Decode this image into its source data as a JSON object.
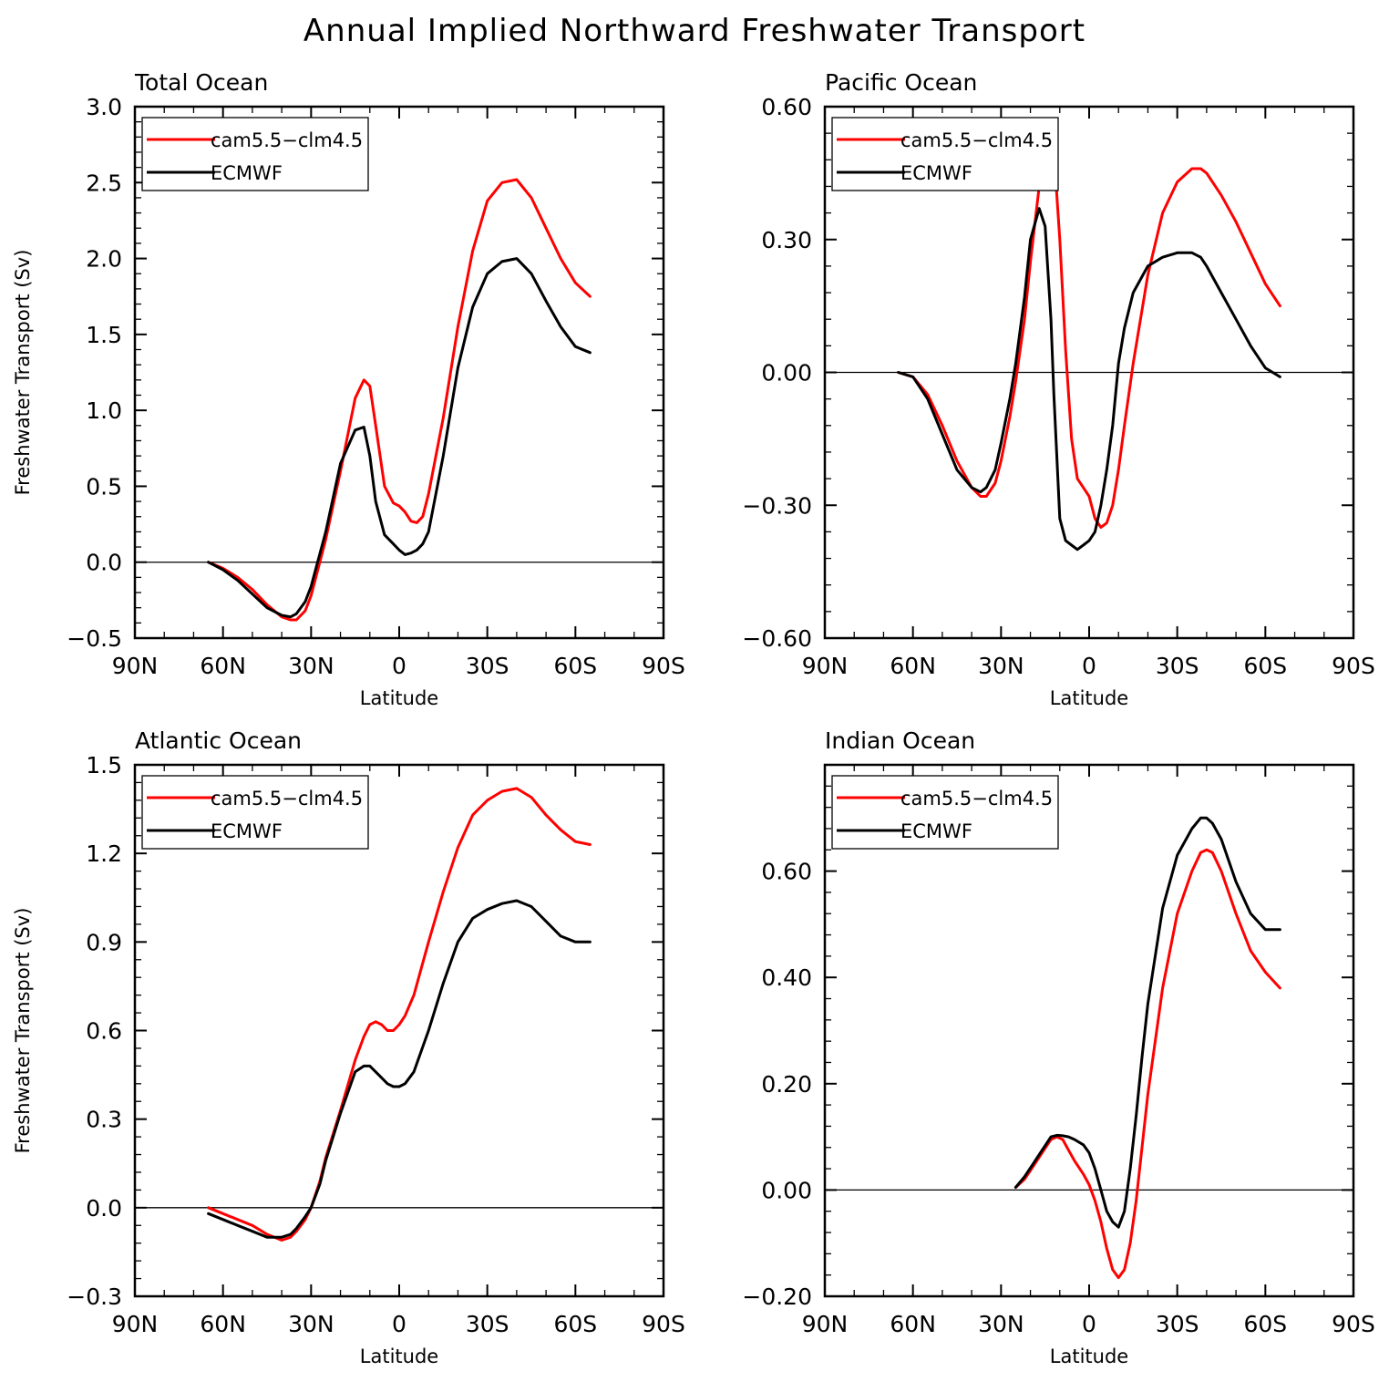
{
  "figure": {
    "title": "Annual Implied Northward Freshwater Transport"
  },
  "chart_data": [
    {
      "type": "line",
      "title": "Total Ocean",
      "xlabel": "Latitude",
      "ylabel": "Freshwater Transport (Sv)",
      "xlim": [
        90,
        -90
      ],
      "ylim": [
        -0.5,
        3.0
      ],
      "x_ticks": [
        90,
        60,
        30,
        0,
        -30,
        -60,
        -90
      ],
      "x_tick_labels": [
        "90N",
        "60N",
        "30N",
        "0",
        "30S",
        "60S",
        "90S"
      ],
      "y_ticks": [
        -0.5,
        0.0,
        0.5,
        1.0,
        1.5,
        2.0,
        2.5,
        3.0
      ],
      "y_tick_labels": [
        "−0.5",
        "0.0",
        "0.5",
        "1.0",
        "1.5",
        "2.0",
        "2.5",
        "3.0"
      ],
      "legend": {
        "placement": "top-left"
      },
      "series": [
        {
          "name": "cam5.5−clm4.5",
          "color": "#ff0000",
          "x": [
            65,
            60,
            55,
            50,
            45,
            40,
            37,
            35,
            32,
            30,
            25,
            20,
            15,
            12,
            10,
            8,
            5,
            2,
            0,
            -2,
            -4,
            -6,
            -8,
            -10,
            -15,
            -20,
            -25,
            -30,
            -35,
            -40,
            -45,
            -50,
            -55,
            -60,
            -65
          ],
          "y": [
            0,
            -0.04,
            -0.1,
            -0.18,
            -0.28,
            -0.36,
            -0.38,
            -0.38,
            -0.32,
            -0.22,
            0.15,
            0.6,
            1.08,
            1.2,
            1.16,
            0.9,
            0.5,
            0.39,
            0.37,
            0.33,
            0.27,
            0.26,
            0.3,
            0.45,
            0.95,
            1.55,
            2.05,
            2.38,
            2.5,
            2.52,
            2.4,
            2.2,
            2.0,
            1.84,
            1.75
          ]
        },
        {
          "name": "ECMWF",
          "color": "#000000",
          "x": [
            65,
            60,
            55,
            50,
            45,
            40,
            37,
            35,
            32,
            30,
            25,
            20,
            15,
            12,
            10,
            8,
            5,
            2,
            0,
            -2,
            -4,
            -6,
            -8,
            -10,
            -15,
            -20,
            -25,
            -30,
            -35,
            -40,
            -45,
            -50,
            -55,
            -60,
            -65
          ],
          "y": [
            0,
            -0.05,
            -0.12,
            -0.21,
            -0.3,
            -0.35,
            -0.36,
            -0.34,
            -0.26,
            -0.16,
            0.2,
            0.65,
            0.87,
            0.89,
            0.7,
            0.4,
            0.18,
            0.12,
            0.08,
            0.05,
            0.06,
            0.08,
            0.12,
            0.2,
            0.7,
            1.28,
            1.68,
            1.9,
            1.98,
            2.0,
            1.9,
            1.72,
            1.55,
            1.42,
            1.38
          ]
        }
      ]
    },
    {
      "type": "line",
      "title": "Pacific Ocean",
      "xlabel": "Latitude",
      "ylabel": "",
      "xlim": [
        90,
        -90
      ],
      "ylim": [
        -0.6,
        0.6
      ],
      "x_ticks": [
        90,
        60,
        30,
        0,
        -30,
        -60,
        -90
      ],
      "x_tick_labels": [
        "90N",
        "60N",
        "30N",
        "0",
        "30S",
        "60S",
        "90S"
      ],
      "y_ticks": [
        -0.6,
        -0.3,
        0.0,
        0.3,
        0.6
      ],
      "y_tick_labels": [
        "−0.60",
        "−0.30",
        "0.00",
        "0.30",
        "0.60"
      ],
      "legend": {
        "placement": "top-left"
      },
      "series": [
        {
          "name": "cam5.5−clm4.5",
          "color": "#ff0000",
          "x": [
            65,
            60,
            55,
            50,
            45,
            40,
            37,
            35,
            32,
            30,
            27,
            25,
            22,
            20,
            17,
            15,
            13,
            12,
            10,
            8,
            6,
            4,
            2,
            0,
            -2,
            -4,
            -6,
            -8,
            -10,
            -12,
            -15,
            -20,
            -25,
            -30,
            -35,
            -38,
            -40,
            -45,
            -50,
            -55,
            -60,
            -65
          ],
          "y": [
            0,
            -0.01,
            -0.05,
            -0.12,
            -0.2,
            -0.26,
            -0.28,
            -0.28,
            -0.25,
            -0.2,
            -0.1,
            -0.02,
            0.12,
            0.25,
            0.42,
            0.52,
            0.53,
            0.5,
            0.3,
            0.05,
            -0.15,
            -0.24,
            -0.26,
            -0.28,
            -0.33,
            -0.35,
            -0.34,
            -0.3,
            -0.22,
            -0.12,
            0.02,
            0.22,
            0.36,
            0.43,
            0.46,
            0.46,
            0.45,
            0.4,
            0.34,
            0.27,
            0.2,
            0.15
          ]
        },
        {
          "name": "ECMWF",
          "color": "#000000",
          "x": [
            65,
            60,
            55,
            50,
            45,
            40,
            37,
            35,
            32,
            30,
            27,
            25,
            22,
            20,
            17,
            15,
            13,
            12,
            10,
            8,
            6,
            4,
            2,
            0,
            -2,
            -4,
            -6,
            -8,
            -10,
            -12,
            -15,
            -20,
            -25,
            -30,
            -35,
            -38,
            -40,
            -45,
            -50,
            -55,
            -60,
            -65
          ],
          "y": [
            0,
            -0.01,
            -0.06,
            -0.14,
            -0.22,
            -0.26,
            -0.27,
            -0.26,
            -0.22,
            -0.16,
            -0.06,
            0.02,
            0.17,
            0.3,
            0.37,
            0.33,
            0.12,
            -0.05,
            -0.33,
            -0.38,
            -0.39,
            -0.4,
            -0.39,
            -0.38,
            -0.36,
            -0.3,
            -0.22,
            -0.12,
            0.02,
            0.1,
            0.18,
            0.24,
            0.26,
            0.27,
            0.27,
            0.26,
            0.24,
            0.18,
            0.12,
            0.06,
            0.01,
            -0.01
          ]
        }
      ]
    },
    {
      "type": "line",
      "title": "Atlantic Ocean",
      "xlabel": "Latitude",
      "ylabel": "Freshwater Transport (Sv)",
      "xlim": [
        90,
        -90
      ],
      "ylim": [
        -0.3,
        1.5
      ],
      "x_ticks": [
        90,
        60,
        30,
        0,
        -30,
        -60,
        -90
      ],
      "x_tick_labels": [
        "90N",
        "60N",
        "30N",
        "0",
        "30S",
        "60S",
        "90S"
      ],
      "y_ticks": [
        -0.3,
        0.0,
        0.3,
        0.6,
        0.9,
        1.2,
        1.5
      ],
      "y_tick_labels": [
        "−0.3",
        "0.0",
        "0.3",
        "0.6",
        "0.9",
        "1.2",
        "1.5"
      ],
      "legend": {
        "placement": "top-left"
      },
      "series": [
        {
          "name": "cam5.5−clm4.5",
          "color": "#ff0000",
          "x": [
            65,
            60,
            55,
            50,
            45,
            40,
            37,
            35,
            32,
            30,
            27,
            25,
            20,
            15,
            12,
            10,
            8,
            6,
            4,
            2,
            0,
            -2,
            -5,
            -10,
            -15,
            -20,
            -25,
            -30,
            -35,
            -40,
            -45,
            -50,
            -55,
            -60,
            -65
          ],
          "y": [
            0,
            -0.02,
            -0.04,
            -0.06,
            -0.09,
            -0.11,
            -0.1,
            -0.08,
            -0.04,
            0,
            0.09,
            0.17,
            0.33,
            0.5,
            0.58,
            0.62,
            0.63,
            0.62,
            0.6,
            0.6,
            0.62,
            0.65,
            0.72,
            0.9,
            1.07,
            1.22,
            1.33,
            1.38,
            1.41,
            1.42,
            1.39,
            1.33,
            1.28,
            1.24,
            1.23
          ]
        },
        {
          "name": "ECMWF",
          "color": "#000000",
          "x": [
            65,
            60,
            55,
            50,
            45,
            40,
            37,
            35,
            32,
            30,
            27,
            25,
            20,
            15,
            12,
            10,
            8,
            6,
            4,
            2,
            0,
            -2,
            -5,
            -10,
            -15,
            -20,
            -25,
            -30,
            -35,
            -40,
            -45,
            -50,
            -55,
            -60,
            -65
          ],
          "y": [
            -0.02,
            -0.04,
            -0.06,
            -0.08,
            -0.1,
            -0.1,
            -0.09,
            -0.07,
            -0.03,
            0,
            0.08,
            0.16,
            0.32,
            0.46,
            0.48,
            0.48,
            0.46,
            0.44,
            0.42,
            0.41,
            0.41,
            0.42,
            0.46,
            0.6,
            0.76,
            0.9,
            0.98,
            1.01,
            1.03,
            1.04,
            1.02,
            0.97,
            0.92,
            0.9,
            0.9
          ]
        }
      ]
    },
    {
      "type": "line",
      "title": "Indian Ocean",
      "xlabel": "Latitude",
      "ylabel": "",
      "xlim": [
        90,
        -90
      ],
      "ylim": [
        -0.2,
        0.8
      ],
      "x_ticks": [
        90,
        60,
        30,
        0,
        -30,
        -60,
        -90
      ],
      "x_tick_labels": [
        "90N",
        "60N",
        "30N",
        "0",
        "30S",
        "60S",
        "90S"
      ],
      "y_ticks": [
        -0.2,
        0.0,
        0.2,
        0.4,
        0.6
      ],
      "y_tick_labels": [
        "−0.20",
        "0.00",
        "0.20",
        "0.40",
        "0.60"
      ],
      "legend": {
        "placement": "top-left"
      },
      "series": [
        {
          "name": "cam5.5−clm4.5",
          "color": "#ff0000",
          "x": [
            25,
            22,
            19,
            16,
            13,
            11,
            9,
            7,
            5,
            2,
            0,
            -2,
            -4,
            -6,
            -8,
            -10,
            -12,
            -14,
            -16,
            -18,
            -20,
            -25,
            -30,
            -35,
            -38,
            -40,
            -42,
            -45,
            -50,
            -55,
            -60,
            -65
          ],
          "y": [
            0.005,
            0.02,
            0.045,
            0.07,
            0.095,
            0.1,
            0.095,
            0.075,
            0.055,
            0.03,
            0.01,
            -0.02,
            -0.06,
            -0.11,
            -0.15,
            -0.165,
            -0.15,
            -0.1,
            -0.02,
            0.08,
            0.18,
            0.38,
            0.52,
            0.6,
            0.635,
            0.64,
            0.635,
            0.6,
            0.52,
            0.45,
            0.41,
            0.38
          ]
        },
        {
          "name": "ECMWF",
          "color": "#000000",
          "x": [
            25,
            22,
            19,
            16,
            13,
            11,
            9,
            7,
            5,
            2,
            0,
            -2,
            -4,
            -6,
            -8,
            -10,
            -12,
            -14,
            -16,
            -18,
            -20,
            -25,
            -30,
            -35,
            -38,
            -40,
            -42,
            -45,
            -50,
            -55,
            -60,
            -65
          ],
          "y": [
            0.005,
            0.025,
            0.05,
            0.075,
            0.1,
            0.103,
            0.102,
            0.1,
            0.095,
            0.085,
            0.07,
            0.04,
            0.0,
            -0.04,
            -0.06,
            -0.07,
            -0.04,
            0.04,
            0.14,
            0.25,
            0.35,
            0.53,
            0.63,
            0.68,
            0.7,
            0.7,
            0.69,
            0.66,
            0.58,
            0.52,
            0.49,
            0.49
          ]
        }
      ]
    }
  ]
}
